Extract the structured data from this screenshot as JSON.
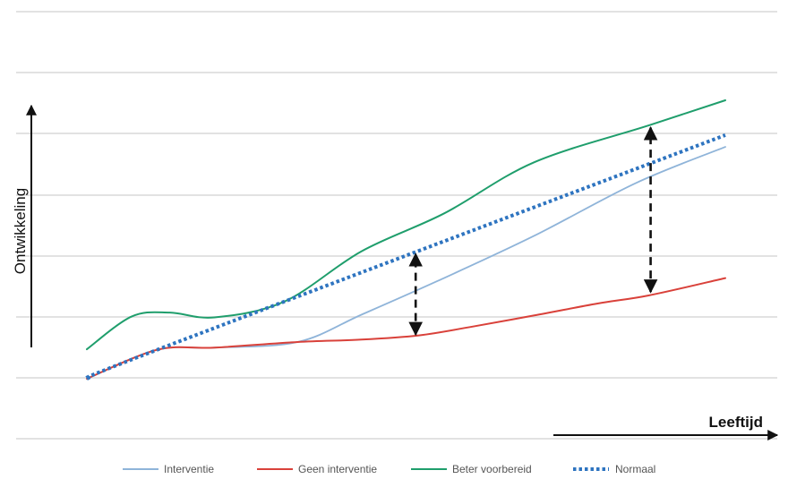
{
  "chart_data": {
    "type": "line",
    "title": "",
    "xlabel": "Leeftijd",
    "ylabel": "Ontwikkeling",
    "xlim": [
      0,
      100
    ],
    "ylim": [
      0,
      100
    ],
    "grid": true,
    "legend_position": "bottom",
    "series": [
      {
        "name": "Interventie",
        "color": "#8fb4d9",
        "style": "solid",
        "x": [
          0,
          11,
          20,
          33,
          43,
          55,
          70,
          86,
          100
        ],
        "y": [
          0,
          10.8,
          11.6,
          13.7,
          23.9,
          36.6,
          53.3,
          73.1,
          86.6
        ]
      },
      {
        "name": "Geen interventie",
        "color": "#d9413a",
        "style": "solid",
        "x": [
          0,
          11,
          20,
          33,
          43,
          52,
          60,
          70,
          80,
          88,
          100
        ],
        "y": [
          0,
          10.8,
          11.6,
          13.7,
          14.6,
          16.2,
          19.3,
          23.6,
          28.1,
          31.1,
          37.6
        ]
      },
      {
        "name": "Beter voorbereid",
        "color": "#1f9e6c",
        "style": "solid",
        "x": [
          0,
          7,
          13,
          20,
          31,
          43,
          56,
          70,
          88,
          100
        ],
        "y": [
          11,
          23.2,
          24.7,
          22.9,
          28.9,
          47.6,
          61.8,
          80.8,
          94.6,
          104
        ]
      },
      {
        "name": "Normaal",
        "color": "#2e74c0",
        "style": "dotted",
        "x": [
          0,
          11,
          100
        ],
        "y": [
          0,
          10.8,
          91
        ]
      }
    ],
    "annotations": [
      {
        "type": "double-arrow",
        "x": 51.5,
        "y_from": 15.5,
        "y_to": 47.6,
        "style": "dashed"
      },
      {
        "type": "double-arrow",
        "x": 88.3,
        "y_from": 31.4,
        "y_to": 94.8,
        "style": "dashed"
      }
    ]
  }
}
